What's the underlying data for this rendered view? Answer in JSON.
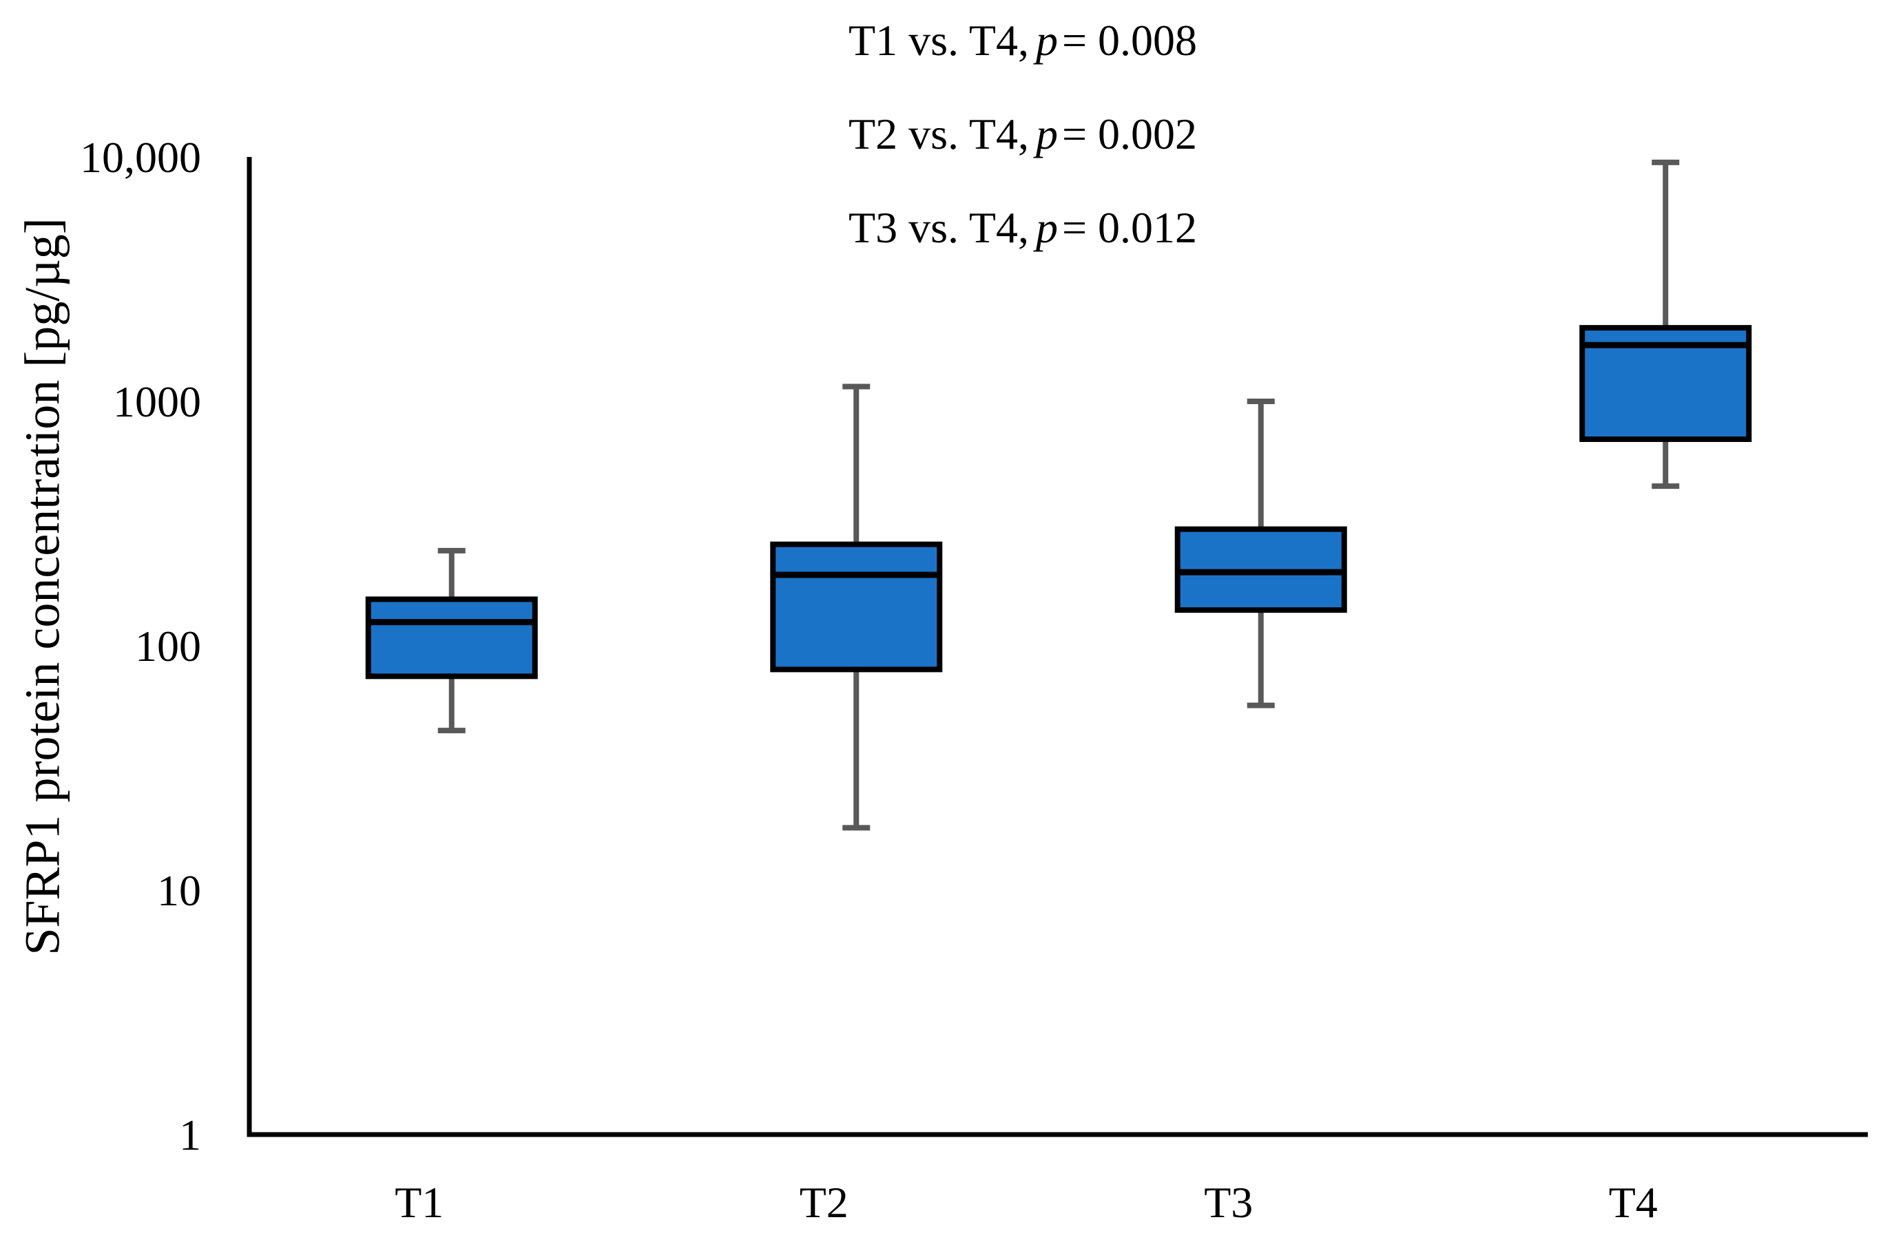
{
  "figure": {
    "annotations": [
      {
        "pair": "T1 vs. T4,",
        "p_symbol": "p",
        "p_value": "= 0.008"
      },
      {
        "pair": "T2 vs. T4,",
        "p_symbol": "p",
        "p_value": "= 0.002"
      },
      {
        "pair": "T3 vs. T4,",
        "p_symbol": "p",
        "p_value": "= 0.012"
      }
    ]
  },
  "chart_data": {
    "type": "boxplot",
    "title": "",
    "xlabel": "",
    "ylabel": "SFRP1 protein concentration [pg/µg]",
    "y_scale": "log10",
    "ylim": [
      1,
      10000
    ],
    "grid": false,
    "legend": "none",
    "yticks": [
      {
        "label": "10,000",
        "value": 10000
      },
      {
        "label": "1000",
        "value": 1000
      },
      {
        "label": "100",
        "value": 100
      },
      {
        "label": "10",
        "value": 10
      },
      {
        "label": "1",
        "value": 1
      }
    ],
    "categories": [
      "T1",
      "T2",
      "T3",
      "T4"
    ],
    "series": [
      {
        "name": "T1",
        "whisker_low": 45,
        "q1": 75,
        "median": 125,
        "q3": 155,
        "whisker_high": 245
      },
      {
        "name": "T2",
        "whisker_low": 18,
        "q1": 80,
        "median": 195,
        "q3": 260,
        "whisker_high": 1150
      },
      {
        "name": "T3",
        "whisker_low": 57,
        "q1": 140,
        "median": 200,
        "q3": 300,
        "whisker_high": 1000
      },
      {
        "name": "T4",
        "whisker_low": 450,
        "q1": 700,
        "median": 1700,
        "q3": 2000,
        "whisker_high": 9500
      }
    ],
    "annotations": [
      "T1 vs. T4, p = 0.008",
      "T2 vs. T4, p = 0.002",
      "T3 vs. T4, p = 0.012"
    ],
    "colors": {
      "box_fill": "#1B73C8",
      "box_border": "#000000",
      "median": "#000000",
      "whisker": "#595959",
      "text": "#000000",
      "background": "#FFFFFF"
    }
  }
}
